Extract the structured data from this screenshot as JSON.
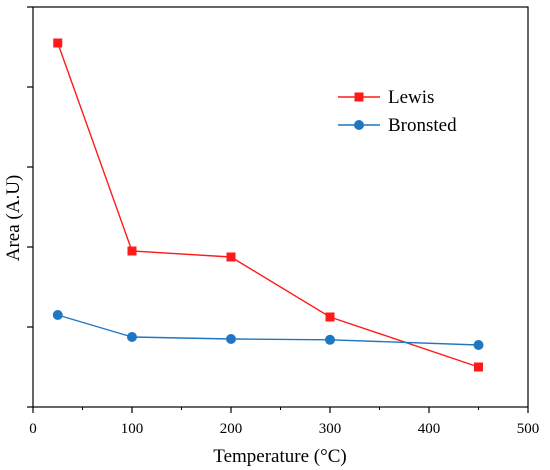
{
  "chart_data": {
    "type": "line",
    "xlabel": "Temperature (°C)",
    "ylabel": "Area (A.U)",
    "xlim": [
      0,
      500
    ],
    "x_ticks": [
      0,
      100,
      200,
      300,
      400,
      500
    ],
    "ylim": [
      0,
      1
    ],
    "y_ticks_labeled": false,
    "grid": false,
    "legend_position": "top-right",
    "x": [
      25,
      100,
      200,
      300,
      450
    ],
    "series": [
      {
        "name": "Lewis",
        "values": [
          0.91,
          0.39,
          0.375,
          0.225,
          0.1
        ],
        "color": "#ff1a1a",
        "marker": "square"
      },
      {
        "name": "Bronsted",
        "values": [
          0.23,
          0.175,
          0.17,
          0.168,
          0.155
        ],
        "color": "#1f77c4",
        "marker": "circle"
      }
    ]
  }
}
